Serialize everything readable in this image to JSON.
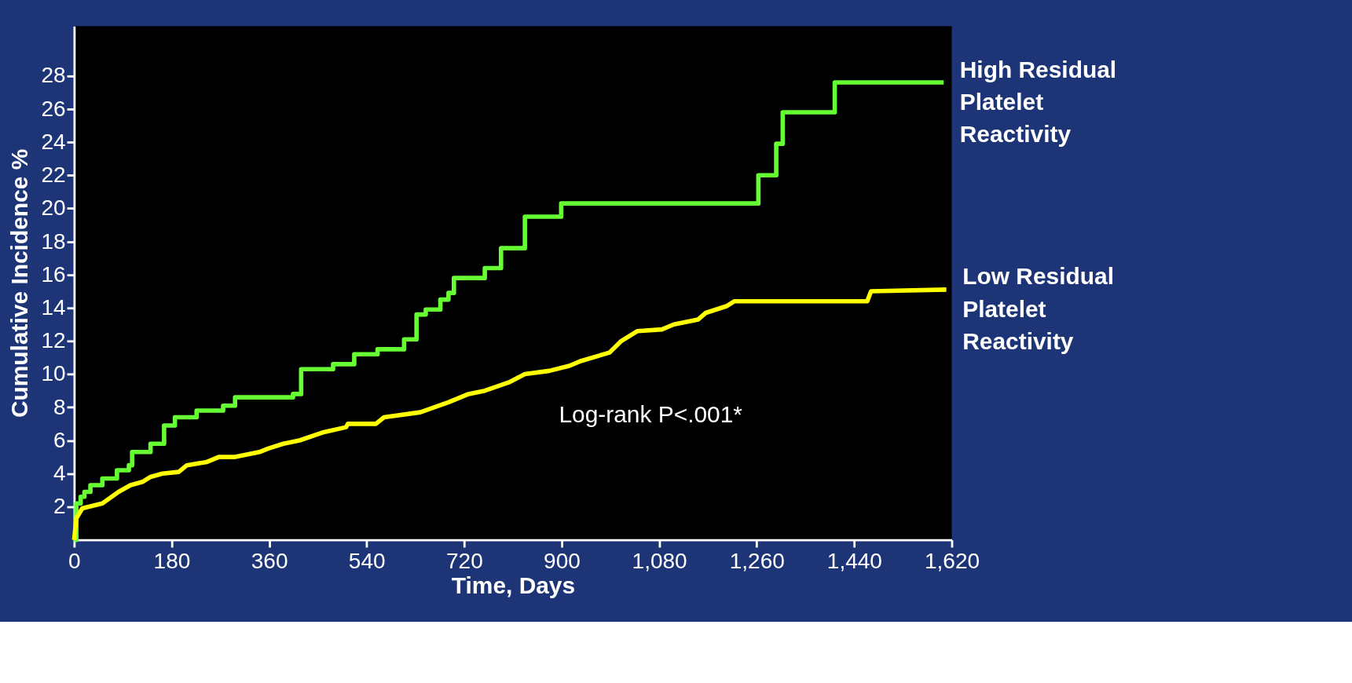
{
  "chart_data": {
    "type": "line",
    "xlabel": "Time, Days",
    "ylabel": "Cumulative Incidence %",
    "xlim": [
      0,
      1620
    ],
    "ylim": [
      0,
      31
    ],
    "xticks": [
      0,
      180,
      360,
      540,
      720,
      900,
      {
        "value": 1080,
        "label": "1,080"
      },
      {
        "value": 1260,
        "label": "1,260"
      },
      {
        "value": 1440,
        "label": "1,440"
      },
      {
        "value": 1620,
        "label": "1,620"
      }
    ],
    "yticks": [
      2,
      4,
      6,
      8,
      10,
      12,
      14,
      16,
      18,
      20,
      22,
      24,
      26,
      28
    ],
    "grid": false,
    "legend": false,
    "marker": "none",
    "line_style": "solid",
    "annotations": [
      "Log-rank P<.001*"
    ],
    "series": [
      {
        "name": "High Residual Platelet Reactivity",
        "type": "step",
        "color": "#66ff33",
        "x": [
          0,
          4,
          12,
          19,
          30,
          52,
          79,
          101,
          107,
          141,
          166,
          186,
          226,
          275,
          297,
          404,
          419,
          478,
          517,
          560,
          609,
          632,
          649,
          676,
          691,
          701,
          758,
          788,
          832,
          899,
          1263,
          1296,
          1308,
          1404,
          1605
        ],
        "values": [
          0,
          2.2,
          2.6,
          2.9,
          3.3,
          3.7,
          4.2,
          4.5,
          5.3,
          5.8,
          6.9,
          7.4,
          7.8,
          8.1,
          8.6,
          8.8,
          10.3,
          10.6,
          11.2,
          11.5,
          12.1,
          13.6,
          13.9,
          14.5,
          14.9,
          15.8,
          16.4,
          17.6,
          19.5,
          20.3,
          22.0,
          23.9,
          25.8,
          27.6,
          27.6
        ]
      },
      {
        "name": "Low Residual Platelet Reactivity",
        "type": "line",
        "color": "#ffff00",
        "x": [
          0,
          4,
          15,
          52,
          82,
          104,
          126,
          141,
          163,
          193,
          208,
          245,
          267,
          297,
          342,
          357,
          386,
          416,
          461,
          502,
          505,
          557,
          572,
          639,
          691,
          728,
          758,
          802,
          832,
          877,
          914,
          936,
          988,
          1010,
          1040,
          1085,
          1107,
          1152,
          1166,
          1204,
          1219,
          1464,
          1471,
          1610
        ],
        "values": [
          0,
          1.3,
          1.9,
          2.2,
          2.9,
          3.3,
          3.5,
          3.8,
          4.0,
          4.1,
          4.5,
          4.7,
          5.0,
          5.0,
          5.3,
          5.5,
          5.8,
          6.0,
          6.5,
          6.8,
          7.0,
          7.0,
          7.4,
          7.7,
          8.3,
          8.8,
          9.0,
          9.5,
          10.0,
          10.2,
          10.5,
          10.8,
          11.3,
          12.0,
          12.6,
          12.7,
          13.0,
          13.3,
          13.7,
          14.1,
          14.4,
          14.4,
          15.0,
          15.1
        ]
      }
    ]
  }
}
